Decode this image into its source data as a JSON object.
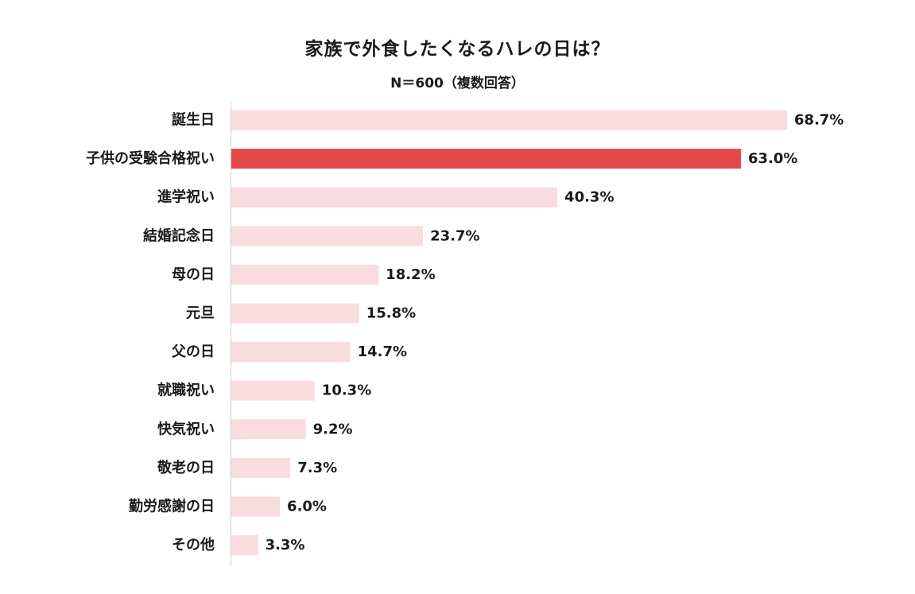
{
  "chart_data": {
    "type": "bar",
    "orientation": "horizontal",
    "title": "家族で外食したくなるハレの日は？",
    "subtitle": "N＝600（複数回答）",
    "categories": [
      "誕生日",
      "子供の受験合格祝い",
      "進学祝い",
      "結婚記念日",
      "母の日",
      "元旦",
      "父の日",
      "就職祝い",
      "快気祝い",
      "敬老の日",
      "勤労感謝の日",
      "その他"
    ],
    "values": [
      68.7,
      63.0,
      40.3,
      23.7,
      18.2,
      15.8,
      14.7,
      10.3,
      9.2,
      7.3,
      6.0,
      3.3
    ],
    "value_labels": [
      "68.7%",
      "63.0%",
      "40.3%",
      "23.7%",
      "18.2%",
      "15.8%",
      "14.7%",
      "10.3%",
      "9.2%",
      "7.3%",
      "6.0%",
      "3.3%"
    ],
    "highlight_index": 1,
    "xlim": [
      0,
      100
    ],
    "unit": "%",
    "grid": false,
    "legend": "none",
    "colors": {
      "bar": "#f9dcdf",
      "highlight": "#e5474b",
      "axis": "#cccccc",
      "text": "#1a1a1a"
    }
  }
}
